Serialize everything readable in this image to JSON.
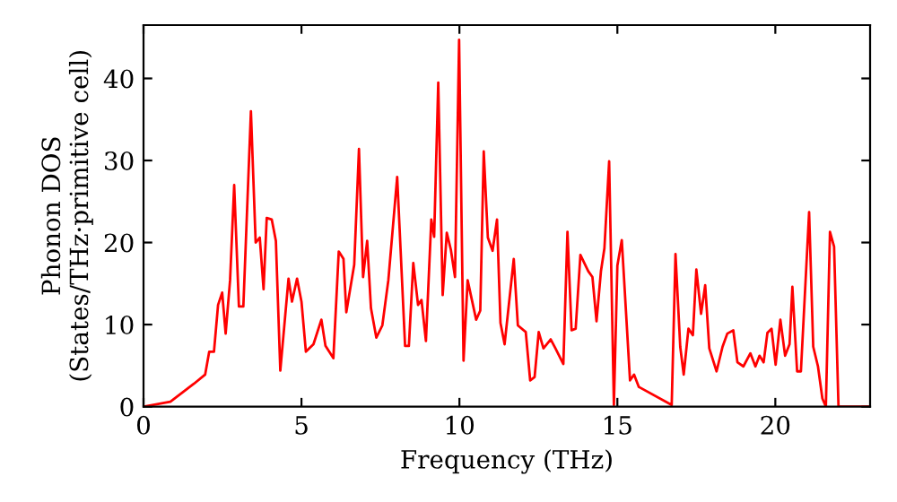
{
  "chart_data": {
    "type": "line",
    "xlabel": "Frequency (THz)",
    "ylabel": "Phonon DOS\n(States/THz·primitive cell)",
    "xlim": [
      0,
      23
    ],
    "ylim": [
      0,
      46.5
    ],
    "xticks": [
      0,
      5,
      10,
      15,
      20
    ],
    "yticks": [
      0,
      10,
      20,
      30,
      40
    ],
    "grid": false,
    "legend": false,
    "line_style": "solid",
    "marker": "none",
    "series": [
      {
        "color": "#ff0000",
        "x": [
          0,
          0.85,
          1.6,
          1.95,
          2.08,
          2.23,
          2.36,
          2.49,
          2.6,
          2.74,
          2.87,
          3.02,
          3.16,
          3.4,
          3.55,
          3.68,
          3.8,
          3.9,
          4.06,
          4.19,
          4.33,
          4.59,
          4.7,
          4.86,
          5.0,
          5.14,
          5.38,
          5.63,
          5.76,
          6.01,
          6.18,
          6.33,
          6.42,
          6.67,
          6.82,
          6.95,
          7.08,
          7.2,
          7.37,
          7.56,
          7.75,
          8.03,
          8.28,
          8.4,
          8.54,
          8.69,
          8.8,
          8.94,
          9.11,
          9.2,
          9.33,
          9.47,
          9.6,
          9.73,
          9.86,
          9.99,
          10.13,
          10.26,
          10.53,
          10.66,
          10.77,
          10.9,
          11.05,
          11.19,
          11.3,
          11.43,
          11.72,
          11.85,
          12.1,
          12.24,
          12.38,
          12.51,
          12.66,
          12.89,
          13.04,
          13.29,
          13.42,
          13.55,
          13.68,
          13.83,
          14.08,
          14.21,
          14.34,
          14.48,
          14.59,
          14.74,
          14.89,
          15.0,
          15.14,
          15.4,
          15.53,
          15.68,
          16.72,
          16.84,
          16.99,
          17.1,
          17.25,
          17.39,
          17.5,
          17.65,
          17.78,
          17.91,
          18.14,
          18.33,
          18.48,
          18.67,
          18.8,
          18.99,
          19.21,
          19.37,
          19.5,
          19.63,
          19.75,
          19.88,
          20.01,
          20.16,
          20.31,
          20.45,
          20.54,
          20.69,
          20.81,
          21.07,
          21.2,
          21.35,
          21.49,
          21.6,
          21.73,
          21.86,
          22.0,
          23.0
        ],
        "values": [
          0,
          0.6,
          2.8,
          3.9,
          6.7,
          6.7,
          12.4,
          13.9,
          8.9,
          15.4,
          27,
          12.2,
          12.2,
          36,
          20,
          20.6,
          14.3,
          23,
          22.8,
          20.2,
          4.4,
          15.6,
          12.8,
          15.6,
          12.8,
          6.7,
          7.6,
          10.6,
          7.4,
          5.9,
          18.9,
          18,
          11.5,
          17.3,
          31.4,
          15.8,
          20.2,
          12,
          8.4,
          9.9,
          15.4,
          28,
          7.4,
          7.4,
          17.5,
          12.4,
          13,
          8,
          22.8,
          20.7,
          39.5,
          13.6,
          21.2,
          19.1,
          15.8,
          44.7,
          5.6,
          15.4,
          10.6,
          11.7,
          31.1,
          20.6,
          19,
          22.8,
          10.2,
          7.6,
          18,
          9.9,
          9.1,
          3.2,
          3.6,
          9.1,
          7.1,
          8.2,
          7.1,
          5.2,
          21.3,
          9.3,
          9.5,
          18.5,
          16.5,
          15.8,
          10.4,
          16.5,
          19.3,
          29.9,
          0.2,
          17.2,
          20.3,
          3.2,
          3.9,
          2.4,
          0.2,
          18.6,
          7.3,
          3.9,
          9.5,
          8.7,
          16.7,
          11.3,
          14.8,
          7.1,
          4.3,
          7.3,
          8.9,
          9.3,
          5.4,
          4.9,
          6.5,
          4.9,
          6.2,
          5.4,
          9,
          9.5,
          5.1,
          10.6,
          6.2,
          7.6,
          14.6,
          4.3,
          4.3,
          23.7,
          7.3,
          4.9,
          1,
          0,
          21.3,
          19.5,
          0,
          0
        ]
      }
    ]
  }
}
